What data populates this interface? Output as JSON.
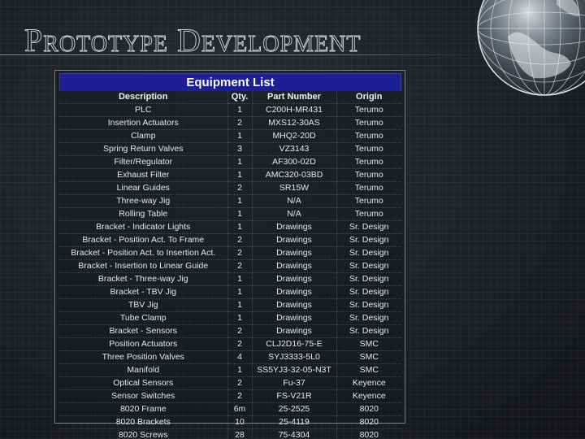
{
  "slide": {
    "title": "Prototype Development"
  },
  "table": {
    "caption": "Equipment List",
    "headers": {
      "description": "Description",
      "qty": "Qty.",
      "part_number": "Part Number",
      "origin": "Origin"
    },
    "rows": [
      {
        "description": "PLC",
        "qty": "1",
        "part_number": "C200H-MR431",
        "origin": "Terumo"
      },
      {
        "description": "Insertion Actuators",
        "qty": "2",
        "part_number": "MXS12-30AS",
        "origin": "Terumo"
      },
      {
        "description": "Clamp",
        "qty": "1",
        "part_number": "MHQ2-20D",
        "origin": "Terumo"
      },
      {
        "description": "Spring Return Valves",
        "qty": "3",
        "part_number": "VZ3143",
        "origin": "Terumo"
      },
      {
        "description": "Filter/Regulator",
        "qty": "1",
        "part_number": "AF300-02D",
        "origin": "Terumo"
      },
      {
        "description": "Exhaust Filter",
        "qty": "1",
        "part_number": "AMC320-03BD",
        "origin": "Terumo"
      },
      {
        "description": "Linear Guides",
        "qty": "2",
        "part_number": "SR15W",
        "origin": "Terumo"
      },
      {
        "description": "Three-way Jig",
        "qty": "1",
        "part_number": "N/A",
        "origin": "Terumo"
      },
      {
        "description": "Rolling Table",
        "qty": "1",
        "part_number": "N/A",
        "origin": "Terumo"
      },
      {
        "description": "Bracket - Indicator Lights",
        "qty": "1",
        "part_number": "Drawings",
        "origin": "Sr. Design"
      },
      {
        "description": "Bracket - Position Act. To Frame",
        "qty": "2",
        "part_number": "Drawings",
        "origin": "Sr. Design"
      },
      {
        "description": "Bracket - Position Act. to Insertion Act.",
        "qty": "2",
        "part_number": "Drawings",
        "origin": "Sr. Design"
      },
      {
        "description": "Bracket - Insertion to Linear Guide",
        "qty": "2",
        "part_number": "Drawings",
        "origin": "Sr. Design"
      },
      {
        "description": "Bracket - Three-way Jig",
        "qty": "1",
        "part_number": "Drawings",
        "origin": "Sr. Design"
      },
      {
        "description": "Bracket - TBV Jig",
        "qty": "1",
        "part_number": "Drawings",
        "origin": "Sr. Design"
      },
      {
        "description": "TBV Jig",
        "qty": "1",
        "part_number": "Drawings",
        "origin": "Sr. Design"
      },
      {
        "description": "Tube Clamp",
        "qty": "1",
        "part_number": "Drawings",
        "origin": "Sr. Design"
      },
      {
        "description": "Bracket - Sensors",
        "qty": "2",
        "part_number": "Drawings",
        "origin": "Sr. Design"
      },
      {
        "description": "Position Actuators",
        "qty": "2",
        "part_number": "CLJ2D16-75-E",
        "origin": "SMC"
      },
      {
        "description": "Three Position Valves",
        "qty": "4",
        "part_number": "SYJ3333-5L0",
        "origin": "SMC"
      },
      {
        "description": "Manifold",
        "qty": "1",
        "part_number": "SS5YJ3-32-05-N3T",
        "origin": "SMC"
      },
      {
        "description": "Optical Sensors",
        "qty": "2",
        "part_number": "Fu-37",
        "origin": "Keyence"
      },
      {
        "description": "Sensor Switches",
        "qty": "2",
        "part_number": "FS-V21R",
        "origin": "Keyence"
      },
      {
        "description": "8020 Frame",
        "qty": "6m",
        "part_number": "25-2525",
        "origin": "8020"
      },
      {
        "description": "8020 Brackets",
        "qty": "10",
        "part_number": "25-4119",
        "origin": "8020"
      },
      {
        "description": "8020 Screws",
        "qty": "28",
        "part_number": "75-4304",
        "origin": "8020"
      }
    ]
  },
  "decor": {
    "globe_icon": "globe-icon",
    "globe_color": "#c9d2da",
    "header_color": "#1c1f95"
  }
}
